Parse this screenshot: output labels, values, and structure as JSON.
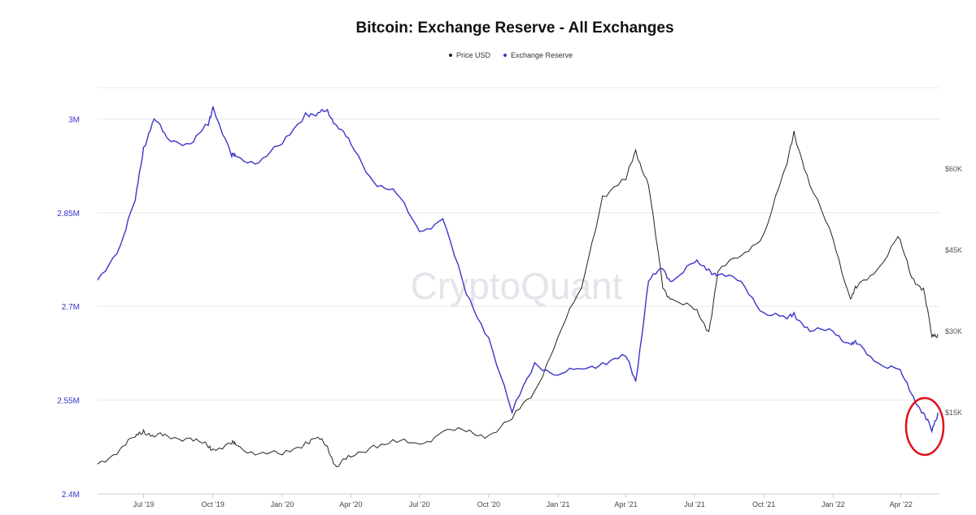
{
  "chart_data": {
    "type": "line",
    "title": "Bitcoin: Exchange Reserve - All Exchanges",
    "watermark": "CryptoQuant",
    "legend_position": "top-center",
    "grid": true,
    "x_ticks": [
      "Jul '19",
      "Oct '19",
      "Jan '20",
      "Apr '20",
      "Jul '20",
      "Oct '20",
      "Jan '21",
      "Apr '21",
      "Jul '21",
      "Oct '21",
      "Jan '22",
      "Apr '22"
    ],
    "y_left": {
      "ticks": [
        "2.4M",
        "2.55M",
        "2.7M",
        "2.85M",
        "3M"
      ],
      "range": [
        2400000,
        3050000
      ],
      "color": "#3b36c9"
    },
    "y_right": {
      "ticks": [
        "$15K",
        "$30K",
        "$45K",
        "$60K"
      ],
      "range": [
        0,
        75000
      ],
      "color": "#555555"
    },
    "annotation": "red-circle-highlight",
    "x": [
      "2019-05-01",
      "2019-06-01",
      "2019-06-20",
      "2019-07-01",
      "2019-07-15",
      "2019-08-01",
      "2019-09-01",
      "2019-09-25",
      "2019-10-01",
      "2019-10-26",
      "2019-11-01",
      "2019-12-01",
      "2020-01-01",
      "2020-02-01",
      "2020-02-15",
      "2020-03-01",
      "2020-03-13",
      "2020-04-01",
      "2020-05-01",
      "2020-06-01",
      "2020-07-01",
      "2020-08-01",
      "2020-09-01",
      "2020-10-01",
      "2020-11-01",
      "2020-12-01",
      "2021-01-01",
      "2021-02-01",
      "2021-03-01",
      "2021-04-01",
      "2021-04-14",
      "2021-05-01",
      "2021-05-20",
      "2021-06-01",
      "2021-07-01",
      "2021-07-20",
      "2021-08-01",
      "2021-09-01",
      "2021-10-01",
      "2021-11-01",
      "2021-11-10",
      "2021-12-01",
      "2022-01-01",
      "2022-01-24",
      "2022-02-01",
      "2022-03-01",
      "2022-03-28",
      "2022-04-15",
      "2022-05-01",
      "2022-05-12",
      "2022-05-20"
    ],
    "series": [
      {
        "name": "Price USD",
        "color": "#222222",
        "axis": "right",
        "values": [
          5500,
          8500,
          10500,
          11800,
          10500,
          10800,
          10300,
          8500,
          8300,
          9200,
          9000,
          7400,
          7200,
          9600,
          10300,
          8800,
          5000,
          6800,
          9000,
          9500,
          9200,
          11500,
          11500,
          10800,
          13800,
          19000,
          29000,
          38000,
          55000,
          58000,
          63500,
          57000,
          38000,
          36000,
          34000,
          30000,
          41000,
          44000,
          48000,
          61000,
          67000,
          57000,
          47000,
          36000,
          38000,
          41500,
          47500,
          40000,
          38000,
          29000,
          29500
        ]
      },
      {
        "name": "Exchange Reserve",
        "color": "#3b36c9",
        "axis": "left",
        "values": [
          2742000,
          2800000,
          2870000,
          2955000,
          3000000,
          2970000,
          2960000,
          2990000,
          3020000,
          2940000,
          2940000,
          2930000,
          2960000,
          3010000,
          3005000,
          3015000,
          2990000,
          2960000,
          2900000,
          2880000,
          2820000,
          2840000,
          2720000,
          2650000,
          2530000,
          2610000,
          2590000,
          2600000,
          2610000,
          2620000,
          2580000,
          2740000,
          2760000,
          2740000,
          2770000,
          2760000,
          2750000,
          2740000,
          2690000,
          2680000,
          2690000,
          2660000,
          2660000,
          2640000,
          2640000,
          2610000,
          2600000,
          2560000,
          2530000,
          2500000,
          2530000
        ]
      }
    ]
  }
}
